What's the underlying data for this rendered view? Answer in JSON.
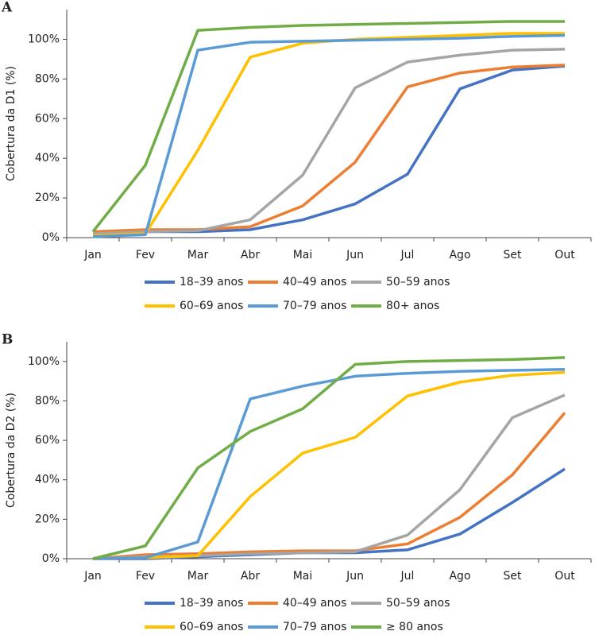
{
  "chart_data": [
    {
      "type": "line",
      "label": "A",
      "y_label": "Cobertura da D1 (%)",
      "categories": [
        "Jan",
        "Fev",
        "Mar",
        "Abr",
        "Mai",
        "Jun",
        "Jul",
        "Ago",
        "Set",
        "Out"
      ],
      "ylim": [
        0,
        115
      ],
      "yticks": [
        {
          "value": 0,
          "label": "0%"
        },
        {
          "value": 20,
          "label": "20%"
        },
        {
          "value": 40,
          "label": "40%"
        },
        {
          "value": 60,
          "label": "60%"
        },
        {
          "value": 80,
          "label": "80%"
        },
        {
          "value": 100,
          "label": "100%"
        }
      ],
      "series": [
        {
          "name": "18–39 anos",
          "color": "#4472c4",
          "values": [
            3,
            3,
            3,
            4,
            9,
            17,
            32,
            75,
            84.5,
            86.5
          ]
        },
        {
          "name": "40–49 anos",
          "color": "#ed7d31",
          "values": [
            3,
            4,
            4,
            5.5,
            16,
            38,
            76,
            83,
            86,
            87
          ]
        },
        {
          "name": "50–59 anos",
          "color": "#a5a5a5",
          "values": [
            2,
            3,
            3.5,
            9,
            31.5,
            75.5,
            88.5,
            92,
            94.5,
            95
          ]
        },
        {
          "name": "60–69 anos",
          "color": "#ffc000",
          "values": [
            1,
            2,
            44,
            91,
            98,
            100,
            101,
            102,
            103,
            103
          ]
        },
        {
          "name": "70–79 anos",
          "color": "#5b9bd5",
          "values": [
            0.5,
            1.5,
            94.5,
            98.5,
            99,
            99.5,
            100,
            100.5,
            101.5,
            102
          ]
        },
        {
          "name": "80+ anos",
          "color": "#70ad47",
          "values": [
            3,
            36.5,
            104.5,
            106,
            107,
            107.5,
            108,
            108.5,
            109,
            109
          ]
        }
      ]
    },
    {
      "type": "line",
      "label": "B",
      "y_label": "Cobertura da D2 (%)",
      "categories": [
        "Jan",
        "Fev",
        "Mar",
        "Abr",
        "Mai",
        "Jun",
        "Jul",
        "Ago",
        "Set",
        "Out"
      ],
      "ylim": [
        0,
        110
      ],
      "yticks": [
        {
          "value": 0,
          "label": "0%"
        },
        {
          "value": 20,
          "label": "20%"
        },
        {
          "value": 40,
          "label": "40%"
        },
        {
          "value": 60,
          "label": "60%"
        },
        {
          "value": 80,
          "label": "80%"
        },
        {
          "value": 100,
          "label": "100%"
        }
      ],
      "series": [
        {
          "name": "18–39 anos",
          "color": "#4472c4",
          "values": [
            0,
            0,
            1,
            2,
            3,
            3,
            4.5,
            12.5,
            28.5,
            45.5
          ]
        },
        {
          "name": "40–49 anos",
          "color": "#ed7d31",
          "values": [
            0,
            2,
            2.5,
            3.5,
            4,
            4,
            7.5,
            21,
            42.5,
            74
          ]
        },
        {
          "name": "50–59 anos",
          "color": "#a5a5a5",
          "values": [
            0,
            1,
            1.5,
            2.5,
            3,
            3.5,
            12,
            35,
            71.5,
            83
          ]
        },
        {
          "name": "60–69 anos",
          "color": "#ffc000",
          "values": [
            0,
            0.5,
            1.5,
            31.5,
            53.5,
            61.5,
            82.5,
            89.5,
            93,
            94.5
          ]
        },
        {
          "name": "70–79 anos",
          "color": "#5b9bd5",
          "values": [
            0,
            0.5,
            8.5,
            81,
            87.5,
            92.5,
            94,
            95,
            95.5,
            96
          ]
        },
        {
          "name": "≥ 80 anos",
          "color": "#70ad47",
          "values": [
            0,
            6.5,
            46,
            64.5,
            76,
            98.5,
            100,
            100.5,
            101,
            102
          ]
        }
      ]
    }
  ]
}
